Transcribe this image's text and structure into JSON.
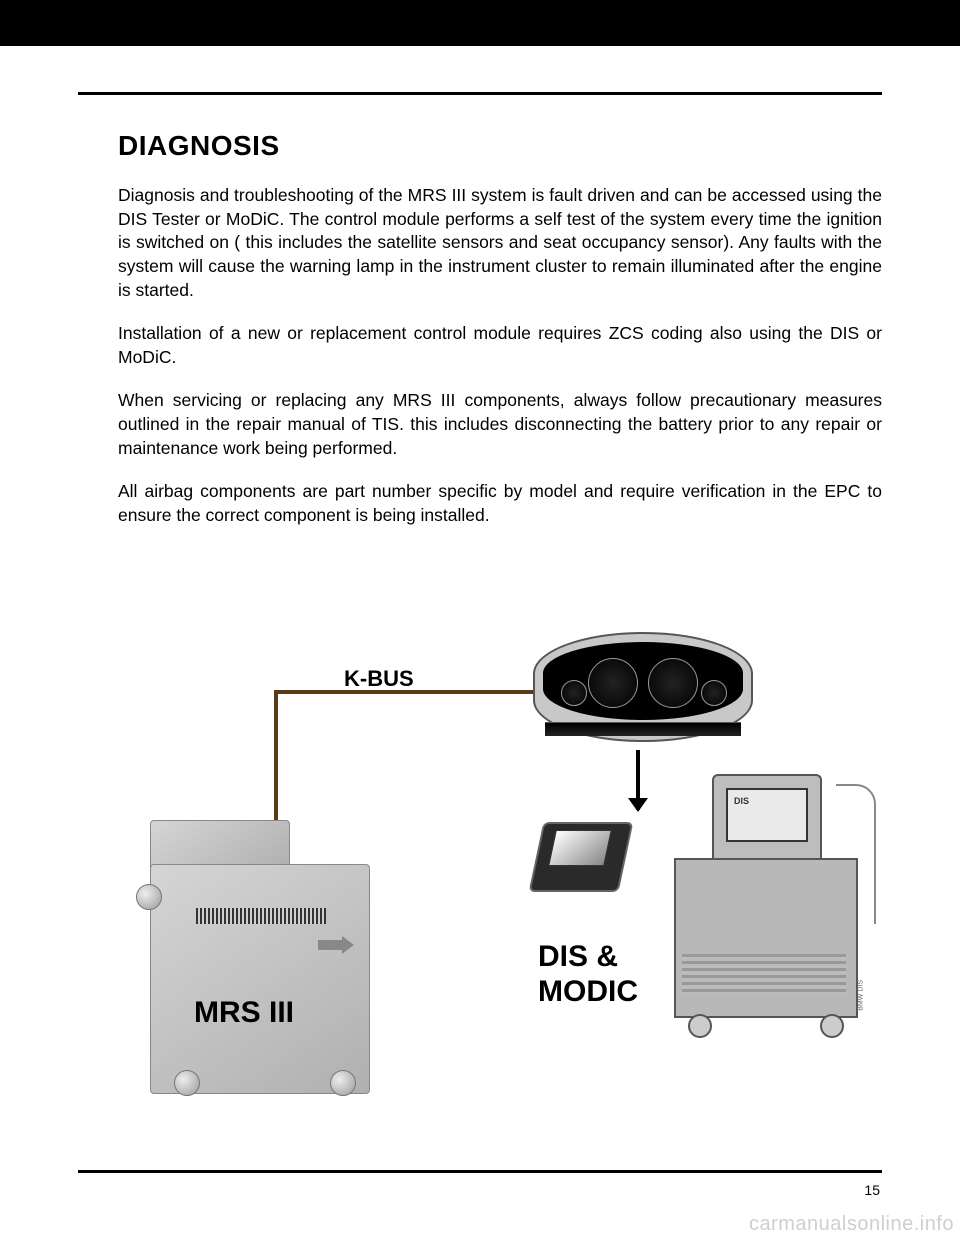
{
  "page_number": "15",
  "watermark": "carmanualsonline.info",
  "heading": "DIAGNOSIS",
  "paragraphs": {
    "p1": "Diagnosis and troubleshooting of the MRS III system is fault driven and can be accessed using the DIS Tester or MoDiC. The control module performs a self test of the system every time the ignition is switched on ( this includes the satellite sensors and seat occupancy sensor). Any faults with the system will cause the warning lamp in the instrument cluster to remain illuminated after the engine is started.",
    "p2": "Installation of a new or replacement  control module requires ZCS coding also using the DIS or MoDiC.",
    "p3": "When servicing or replacing any MRS III components, always follow precautionary measures outlined in the repair manual of TIS. this includes disconnecting the battery prior to any repair or maintenance work being performed.",
    "p4": "All airbag  components are part number specific by model and require verification in the EPC to ensure the correct component is being installed."
  },
  "diagram": {
    "type": "flowchart",
    "nodes": {
      "kbus_label": "K-BUS",
      "mrs_label": "MRS III",
      "dis_modic_label_l1": "DIS &",
      "dis_modic_label_l2": "MODIC",
      "dis_screen_text": "DIS",
      "bmw_dis_text": "BMW DIS"
    },
    "colors": {
      "kbus_wire": "#5a3a18",
      "module_metal": "#c8c8c8",
      "dis_body": "#b8b8b8",
      "black": "#000000",
      "gray_line": "#555555"
    },
    "fonts": {
      "label_size_pt": 22,
      "big_label_size_pt": 30,
      "label_weight": "bold"
    }
  }
}
